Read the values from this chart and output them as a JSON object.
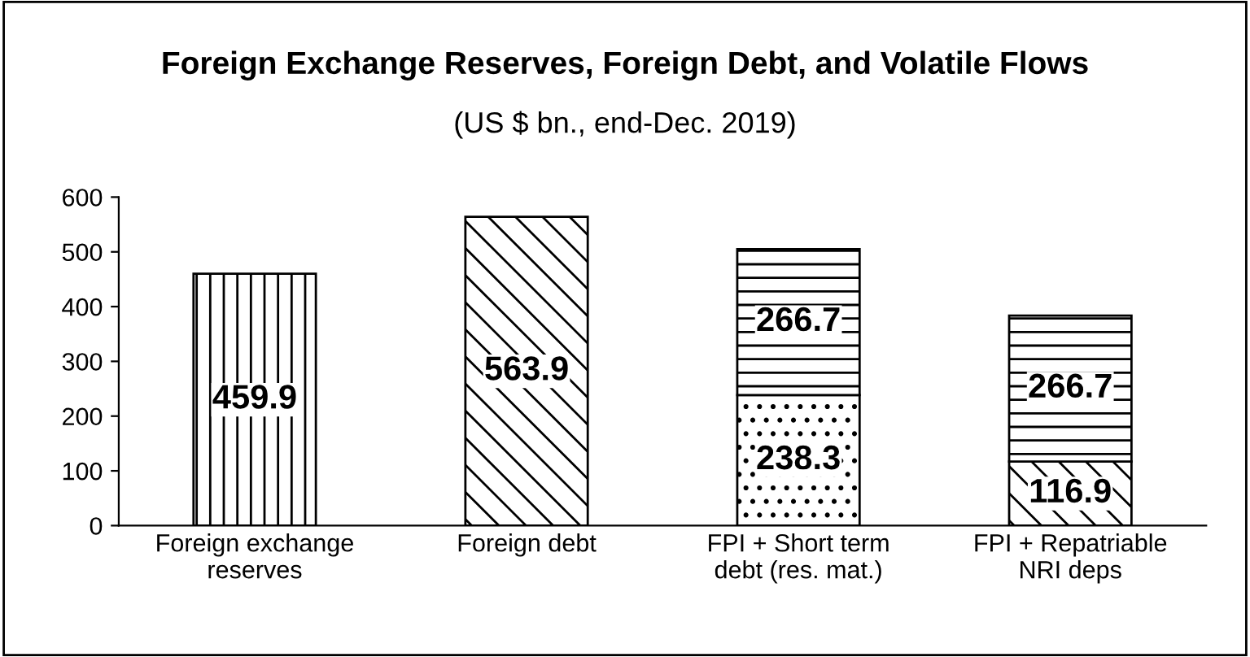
{
  "chart_data": {
    "type": "bar",
    "title": "Foreign Exchange Reserves, Foreign Debt, and Volatile Flows",
    "subtitle": "(US $ bn., end-Dec. 2019)",
    "categories": [
      "Foreign exchange\nreserves",
      "Foreign debt",
      "FPI + Short term\ndebt (res. mat.)",
      "FPI + Repatriable\nNRI deps"
    ],
    "stacked": true,
    "series": [
      {
        "color": "#000000",
        "values": [
          459.9,
          null,
          null,
          null
        ]
      },
      {
        "color": "#000000",
        "values": [
          null,
          563.9,
          null,
          116.9
        ]
      },
      {
        "color": "#000000",
        "values": [
          null,
          null,
          238.3,
          null
        ]
      },
      {
        "color": "#000000",
        "values": [
          null,
          null,
          266.7,
          266.7
        ]
      }
    ],
    "ylim": [
      0,
      600
    ],
    "yticks": [
      0,
      100,
      200,
      300,
      400,
      500,
      600
    ],
    "grid": false,
    "legend": false,
    "data_labels": true
  }
}
